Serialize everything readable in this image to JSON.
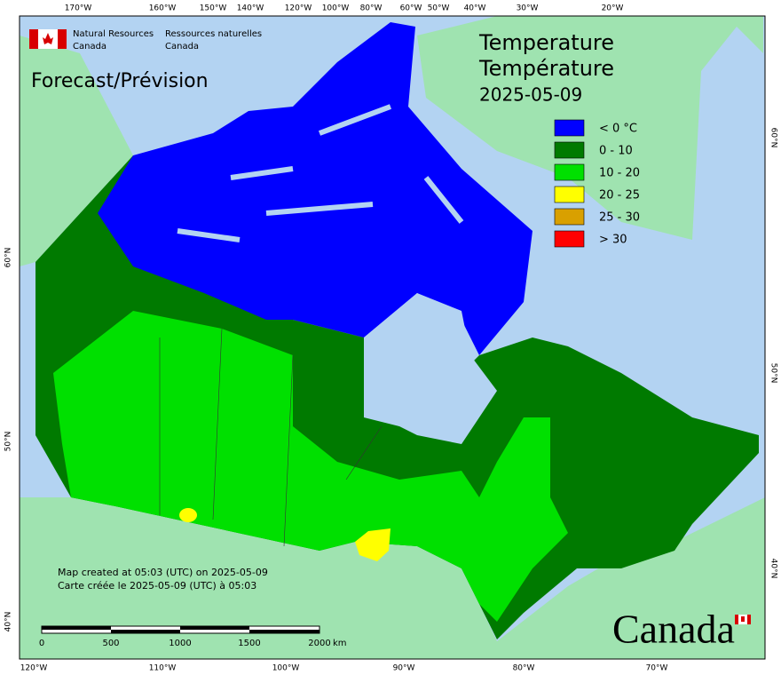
{
  "branding": {
    "en": [
      "Natural Resources",
      "Canada"
    ],
    "fr": [
      "Ressources naturelles",
      "Canada"
    ]
  },
  "product": "Forecast/Prévision",
  "title": {
    "en": "Temperature",
    "fr": "Température",
    "date": "2025-05-09"
  },
  "legend": [
    {
      "label": "< 0 °C",
      "color": "#0000ff"
    },
    {
      "label": "0 - 10",
      "color": "#007a00"
    },
    {
      "label": "10 - 20",
      "color": "#00e000"
    },
    {
      "label": "20 - 25",
      "color": "#ffff00"
    },
    {
      "label": "25 - 30",
      "color": "#d9a000"
    },
    {
      "label": "> 30",
      "color": "#ff0000"
    }
  ],
  "graticule": {
    "top": [
      "170°W",
      "160°W",
      "150°W",
      "140°W",
      "120°W",
      "100°W",
      "80°W",
      "60°W",
      "50°W",
      "40°W",
      "30°W",
      "20°W"
    ],
    "bottom": [
      "120°W",
      "110°W",
      "100°W",
      "90°W",
      "80°W",
      "70°W"
    ],
    "left": [
      "60°N",
      "50°N",
      "40°N"
    ],
    "right": [
      "60°N",
      "50°N",
      "40°N"
    ]
  },
  "footer": [
    "Map created at 05:03 (UTC) on 2025-05-09",
    "Carte créée le 2025-05-09 (UTC) à 05:03"
  ],
  "scale_bar": {
    "labels": [
      "0",
      "500",
      "1000",
      "1500",
      "2000"
    ],
    "unit": "km"
  },
  "wordmark": "Canada"
}
